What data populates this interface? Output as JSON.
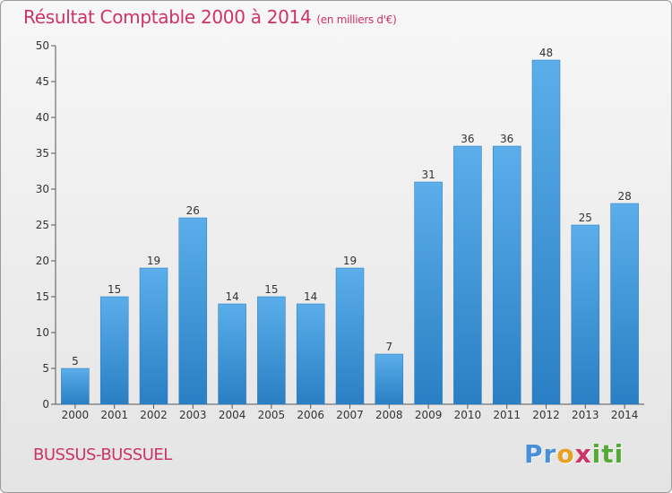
{
  "chart_data": {
    "type": "bar",
    "title": "Résultat Comptable 2000 à 2014",
    "subtitle": "(en milliers d'€)",
    "categories": [
      "2000",
      "2001",
      "2002",
      "2003",
      "2004",
      "2005",
      "2006",
      "2007",
      "2008",
      "2009",
      "2010",
      "2011",
      "2012",
      "2013",
      "2014"
    ],
    "values": [
      5,
      15,
      19,
      26,
      14,
      15,
      14,
      19,
      7,
      31,
      36,
      36,
      48,
      25,
      28
    ],
    "ylim": [
      0,
      50
    ],
    "yticks": [
      0,
      5,
      10,
      15,
      20,
      25,
      30,
      35,
      40,
      45,
      50
    ],
    "xlabel": "",
    "ylabel": "",
    "grid": false,
    "bar_color": "#4fa3e0"
  },
  "commune": "BUSSUS-BUSSUEL",
  "logo": {
    "p1": "Pr",
    "p2": "o",
    "p3": "x",
    "p4": "iti"
  }
}
